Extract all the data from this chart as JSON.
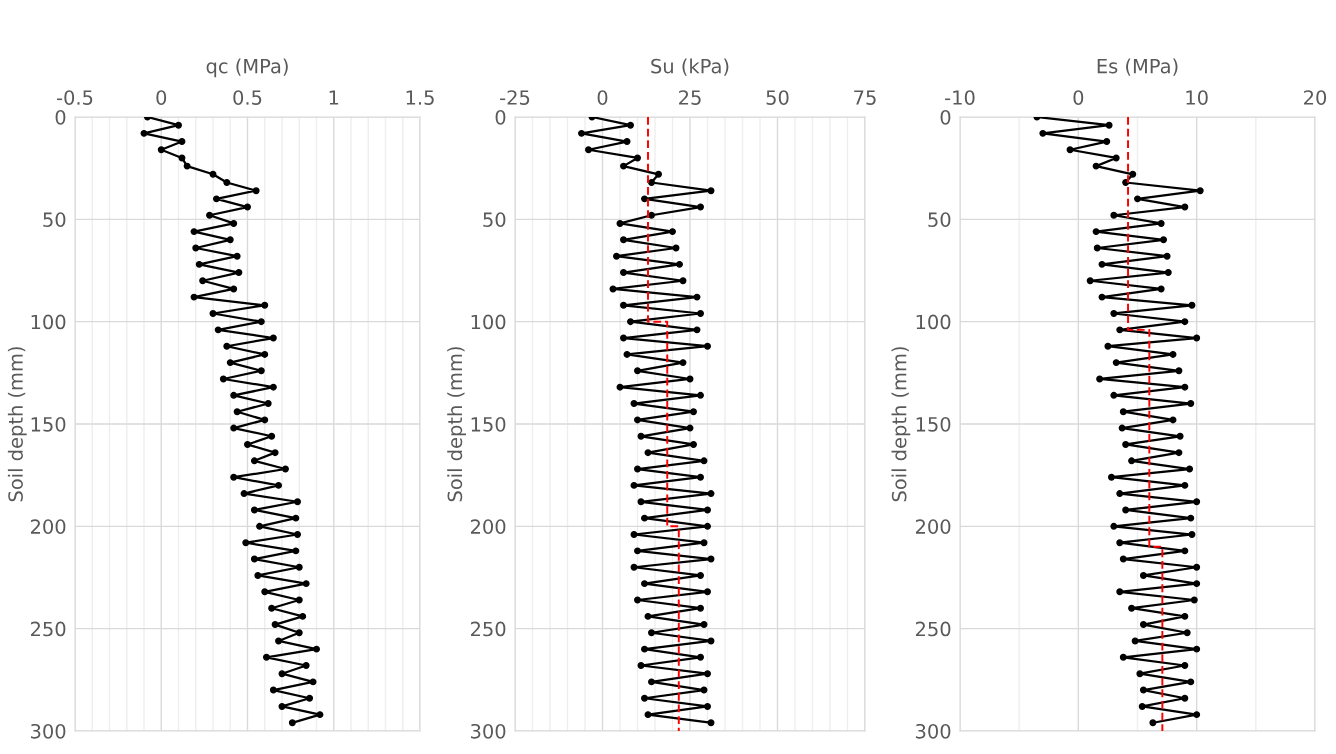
{
  "chart_data": [
    {
      "type": "line",
      "xlabel": "qc (MPa)",
      "ylabel": "Soil depth (mm)",
      "xlim": [
        -0.5,
        1.5
      ],
      "ylim": [
        300,
        0
      ],
      "grid": true,
      "xticks": [
        {
          "value": -0.5,
          "label": "-0.5"
        },
        {
          "value": -0.4,
          "label": null
        },
        {
          "value": -0.3,
          "label": null
        },
        {
          "value": -0.2,
          "label": null
        },
        {
          "value": -0.1,
          "label": null
        },
        0,
        {
          "value": 0.1,
          "label": null
        },
        {
          "value": 0.2,
          "label": null
        },
        {
          "value": 0.3,
          "label": null
        },
        {
          "value": 0.4,
          "label": null
        },
        0.5,
        {
          "value": 0.6,
          "label": null
        },
        {
          "value": 0.7,
          "label": null
        },
        {
          "value": 0.8,
          "label": null
        },
        {
          "value": 0.9,
          "label": null
        },
        1,
        {
          "value": 1.1,
          "label": null
        },
        {
          "value": 1.2,
          "label": null
        },
        {
          "value": 1.3,
          "label": null
        },
        {
          "value": 1.4,
          "label": null
        },
        1.5
      ],
      "yticks": [
        0,
        50,
        100,
        150,
        200,
        250,
        300
      ],
      "series": [
        {
          "color": "#000000",
          "marker": "circle",
          "x": [
            -0.08,
            0.1,
            -0.1,
            0.12,
            0.0,
            0.12,
            0.15,
            0.3,
            0.38,
            0.55,
            0.32,
            0.5,
            0.28,
            0.42,
            0.19,
            0.4,
            0.2,
            0.44,
            0.22,
            0.45,
            0.24,
            0.42,
            0.19,
            0.6,
            0.3,
            0.58,
            0.33,
            0.65,
            0.38,
            0.6,
            0.4,
            0.58,
            0.36,
            0.65,
            0.42,
            0.62,
            0.44,
            0.6,
            0.42,
            0.64,
            0.5,
            0.66,
            0.54,
            0.72,
            0.42,
            0.68,
            0.48,
            0.79,
            0.54,
            0.78,
            0.57,
            0.79,
            0.49,
            0.78,
            0.54,
            0.8,
            0.56,
            0.84,
            0.6,
            0.8,
            0.64,
            0.82,
            0.66,
            0.8,
            0.68,
            0.9,
            0.61,
            0.84,
            0.7,
            0.88,
            0.65,
            0.86,
            0.7,
            0.92,
            0.76
          ],
          "values": [
            0,
            4,
            8,
            12,
            16,
            20,
            24,
            28,
            32,
            36,
            40,
            44,
            48,
            52,
            56,
            60,
            64,
            68,
            72,
            76,
            80,
            84,
            88,
            92,
            96,
            100,
            104,
            108,
            112,
            116,
            120,
            124,
            128,
            132,
            136,
            140,
            144,
            148,
            152,
            156,
            160,
            164,
            168,
            172,
            176,
            180,
            184,
            188,
            192,
            196,
            200,
            204,
            208,
            212,
            216,
            220,
            224,
            228,
            232,
            236,
            240,
            244,
            248,
            252,
            256,
            260,
            264,
            268,
            272,
            276,
            280,
            284,
            288,
            292,
            296
          ]
        }
      ]
    },
    {
      "type": "line",
      "xlabel": "Su (kPa)",
      "ylabel": "Soil depth (mm)",
      "xlim": [
        -25,
        75
      ],
      "ylim": [
        300,
        0
      ],
      "grid": true,
      "xticks": [
        -25,
        {
          "value": -20,
          "label": null
        },
        {
          "value": -15,
          "label": null
        },
        {
          "value": -10,
          "label": null
        },
        {
          "value": -5,
          "label": null
        },
        0,
        {
          "value": 5,
          "label": null
        },
        {
          "value": 10,
          "label": null
        },
        {
          "value": 15,
          "label": null
        },
        {
          "value": 20,
          "label": null
        },
        25,
        {
          "value": 30,
          "label": null
        },
        {
          "value": 35,
          "label": null
        },
        {
          "value": 40,
          "label": null
        },
        {
          "value": 45,
          "label": null
        },
        50,
        {
          "value": 55,
          "label": null
        },
        {
          "value": 60,
          "label": null
        },
        {
          "value": 65,
          "label": null
        },
        {
          "value": 70,
          "label": null
        },
        75
      ],
      "yticks": [
        0,
        50,
        100,
        150,
        200,
        250,
        300
      ],
      "series": [
        {
          "color": "#000000",
          "marker": "circle",
          "x": [
            -3,
            8,
            -6,
            7,
            -4,
            10,
            6,
            16,
            14,
            31,
            12,
            28,
            14,
            5,
            20,
            6,
            21,
            4,
            22,
            6,
            23,
            3,
            27,
            6,
            28,
            8,
            27,
            6,
            30,
            7,
            23,
            10,
            25,
            5,
            28,
            9,
            26,
            10,
            25,
            11,
            26,
            13,
            29,
            10,
            28,
            9,
            31,
            11,
            30,
            12,
            30,
            9,
            29,
            10,
            31,
            9,
            28,
            12,
            30,
            10,
            28,
            13,
            29,
            14,
            31,
            12,
            28,
            11,
            30,
            14,
            29,
            12,
            30,
            13,
            31
          ],
          "values": [
            0,
            4,
            8,
            12,
            16,
            20,
            24,
            28,
            32,
            36,
            40,
            44,
            48,
            52,
            56,
            60,
            64,
            68,
            72,
            76,
            80,
            84,
            88,
            92,
            96,
            100,
            104,
            108,
            112,
            116,
            120,
            124,
            128,
            132,
            136,
            140,
            144,
            148,
            152,
            156,
            160,
            164,
            168,
            172,
            176,
            180,
            184,
            188,
            192,
            196,
            200,
            204,
            208,
            212,
            216,
            220,
            224,
            228,
            232,
            236,
            240,
            244,
            248,
            252,
            256,
            260,
            264,
            268,
            272,
            276,
            280,
            284,
            288,
            292,
            296
          ]
        },
        {
          "color": "#ff0000",
          "marker": "none",
          "line_style": "dashed",
          "x": [
            13,
            13,
            18.5,
            18.5,
            21.8,
            21.8
          ],
          "values": [
            0,
            100,
            100,
            200,
            200,
            300
          ]
        }
      ]
    },
    {
      "type": "line",
      "xlabel": "Es (MPa)",
      "ylabel": "Soil depth (mm)",
      "xlim": [
        -10,
        20
      ],
      "ylim": [
        300,
        0
      ],
      "grid": true,
      "xticks": [
        -10,
        {
          "value": -5,
          "label": null
        },
        0,
        {
          "value": 5,
          "label": null
        },
        10,
        {
          "value": 15,
          "label": null
        },
        20
      ],
      "yticks": [
        0,
        50,
        100,
        150,
        200,
        250,
        300
      ],
      "series": [
        {
          "color": "#000000",
          "marker": "circle",
          "x": [
            -3.5,
            2.6,
            -3,
            2.4,
            -0.7,
            3.2,
            1.5,
            4.6,
            4,
            10.3,
            5,
            9,
            3,
            7,
            1.5,
            7.2,
            1.6,
            7.5,
            2,
            7.6,
            1,
            7,
            2,
            9.6,
            3,
            9,
            3.5,
            10,
            2.5,
            8,
            3.2,
            8.5,
            1.8,
            9,
            3,
            9.5,
            3.8,
            8,
            3.7,
            8.6,
            4,
            8.5,
            4.5,
            9.4,
            2.8,
            9,
            3.5,
            10,
            4,
            9.5,
            3,
            9.6,
            3.5,
            9,
            3.8,
            10,
            5.5,
            10,
            3.5,
            9.8,
            4.5,
            9,
            5.5,
            9.2,
            4.8,
            10,
            3.8,
            9,
            5.2,
            9.5,
            5.5,
            9,
            5.4,
            10,
            6.3
          ],
          "values": [
            0,
            4,
            8,
            12,
            16,
            20,
            24,
            28,
            32,
            36,
            40,
            44,
            48,
            52,
            56,
            60,
            64,
            68,
            72,
            76,
            80,
            84,
            88,
            92,
            96,
            100,
            104,
            108,
            112,
            116,
            120,
            124,
            128,
            132,
            136,
            140,
            144,
            148,
            152,
            156,
            160,
            164,
            168,
            172,
            176,
            180,
            184,
            188,
            192,
            196,
            200,
            204,
            208,
            212,
            216,
            220,
            224,
            228,
            232,
            236,
            240,
            244,
            248,
            252,
            256,
            260,
            264,
            268,
            272,
            276,
            280,
            284,
            288,
            292,
            296
          ]
        },
        {
          "color": "#ff0000",
          "marker": "none",
          "line_style": "dashed",
          "x": [
            4.2,
            4.2,
            6.0,
            6.0,
            7.1,
            7.1
          ],
          "values": [
            0,
            104,
            104,
            210,
            210,
            300
          ]
        }
      ]
    }
  ]
}
